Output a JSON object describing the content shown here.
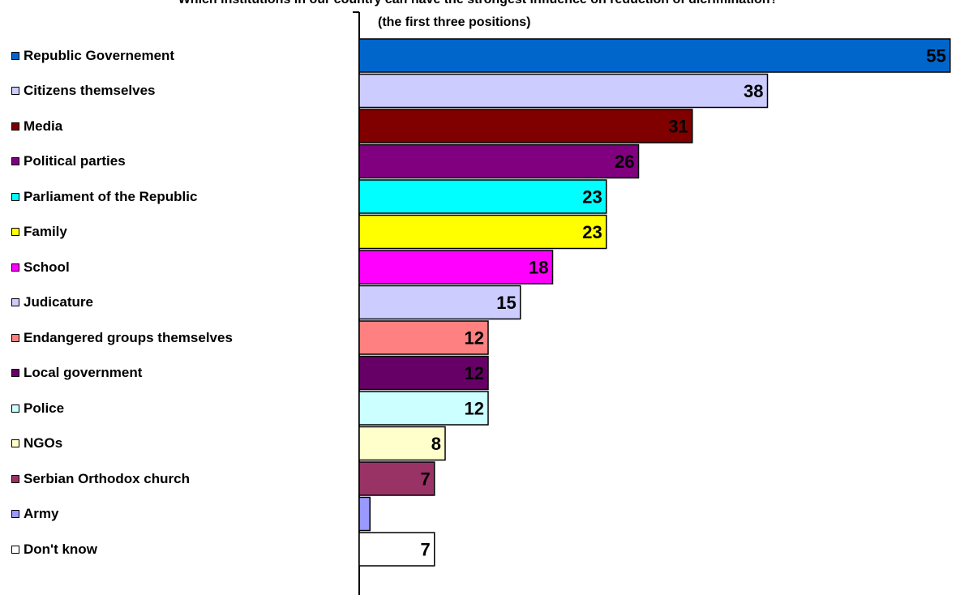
{
  "title": "Which institutions in our country can have the strongest influence on reduction of dicrimination?",
  "subtitle": "(the first three positions)",
  "chart_data": {
    "type": "bar",
    "orientation": "horizontal",
    "categories": [
      "Republic Governement",
      "Citizens themselves",
      "Media",
      "Political parties",
      "Parliament of the Republic",
      "Family",
      "School",
      "Judicature",
      "Endangered groups themselves",
      "Local government",
      "Police",
      "NGOs",
      "Serbian Orthodox church",
      "Army",
      "Don't know"
    ],
    "values": [
      55,
      38,
      31,
      26,
      23,
      23,
      18,
      15,
      12,
      12,
      12,
      8,
      7,
      1,
      7
    ],
    "labels": [
      "55",
      "38",
      "31",
      "26",
      "23",
      "23",
      "18",
      "15",
      "12",
      "12",
      "12",
      "8",
      "7",
      "",
      "7"
    ],
    "colors": [
      "#0066CC",
      "#CCCCFF",
      "#800000",
      "#800080",
      "#00FFFF",
      "#FFFF00",
      "#FF00FF",
      "#CCCCFF",
      "#FF8080",
      "#660066",
      "#CCFFFF",
      "#FFFFCC",
      "#993366",
      "#9999FF",
      "#FFFFFF"
    ],
    "legend_position": "left",
    "grid": false
  }
}
